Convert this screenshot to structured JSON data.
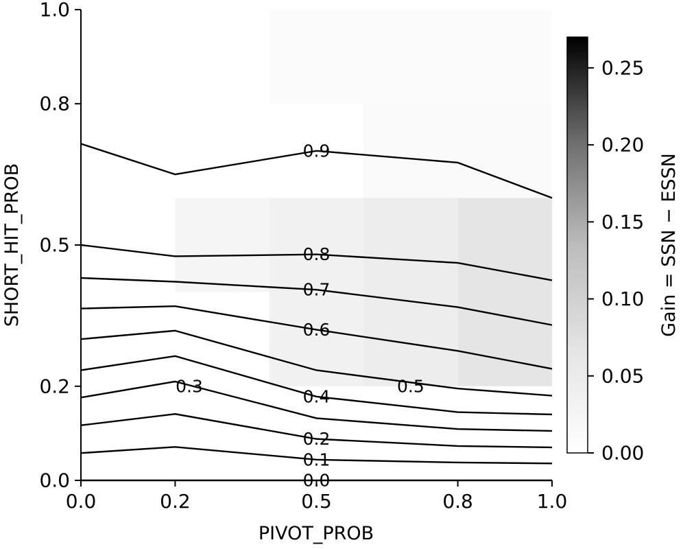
{
  "chart_data": {
    "type": "contour",
    "xlabel": "PIVOT_PROB",
    "ylabel": "SHORT_HIT_PROB",
    "colorbar_label": "Gain = SSN − ESSN",
    "xlim": [
      0.0,
      1.0
    ],
    "ylim": [
      0.0,
      1.0
    ],
    "x_ticks": [
      0.0,
      0.2,
      0.5,
      0.8,
      1.0
    ],
    "x_tick_labels": [
      "0.0",
      "0.2",
      "0.5",
      "0.8",
      "1.0"
    ],
    "y_ticks": [
      0.0,
      0.2,
      0.5,
      0.8,
      1.0
    ],
    "y_tick_labels": [
      "0.0",
      "0.2",
      "0.5",
      "0.8",
      "1.0"
    ],
    "grid": false,
    "colorbar": {
      "range": [
        0.0,
        0.27
      ],
      "ticks": [
        0.0,
        0.05,
        0.1,
        0.15,
        0.2,
        0.25
      ],
      "tick_labels": [
        "0.00",
        "0.05",
        "0.10",
        "0.15",
        "0.20",
        "0.25"
      ],
      "colormap": "Greys"
    },
    "gain_cells": [
      {
        "x0": 0.4,
        "x1": 0.6,
        "y0": 0.8,
        "y1": 1.0,
        "gain": 0.01
      },
      {
        "x0": 0.6,
        "x1": 1.0,
        "y0": 0.8,
        "y1": 1.0,
        "gain": 0.01
      },
      {
        "x0": 0.6,
        "x1": 1.0,
        "y0": 0.6,
        "y1": 0.8,
        "gain": 0.015
      },
      {
        "x0": 0.2,
        "x1": 0.4,
        "y0": 0.4,
        "y1": 0.6,
        "gain": 0.025
      },
      {
        "x0": 0.4,
        "x1": 0.6,
        "y0": 0.2,
        "y1": 0.6,
        "gain": 0.035
      },
      {
        "x0": 0.6,
        "x1": 0.8,
        "y0": 0.2,
        "y1": 0.6,
        "gain": 0.045
      },
      {
        "x0": 0.8,
        "x1": 1.0,
        "y0": 0.2,
        "y1": 0.6,
        "gain": 0.065
      }
    ],
    "contours": [
      {
        "level": "0.0",
        "points": [
          [
            0.0,
            0.0
          ],
          [
            0.2,
            0.0
          ],
          [
            0.5,
            0.0
          ],
          [
            0.8,
            0.0
          ],
          [
            1.0,
            0.0
          ]
        ],
        "label_at": [
          0.5,
          0.0
        ]
      },
      {
        "level": "0.1",
        "points": [
          [
            0.0,
            0.058
          ],
          [
            0.2,
            0.071
          ],
          [
            0.5,
            0.044
          ],
          [
            0.8,
            0.038
          ],
          [
            1.0,
            0.036
          ]
        ],
        "label_at": [
          0.5,
          0.044
        ]
      },
      {
        "level": "0.2",
        "points": [
          [
            0.0,
            0.117
          ],
          [
            0.2,
            0.141
          ],
          [
            0.5,
            0.088
          ],
          [
            0.8,
            0.073
          ],
          [
            1.0,
            0.07
          ]
        ],
        "label_at": [
          0.5,
          0.088
        ]
      },
      {
        "level": "0.3",
        "points": [
          [
            0.0,
            0.176
          ],
          [
            0.2,
            0.21
          ],
          [
            0.5,
            0.132
          ],
          [
            0.8,
            0.109
          ],
          [
            1.0,
            0.105
          ]
        ],
        "label_at": [
          0.23,
          0.2
        ]
      },
      {
        "level": "0.4",
        "points": [
          [
            0.0,
            0.234
          ],
          [
            0.2,
            0.264
          ],
          [
            0.5,
            0.178
          ],
          [
            0.8,
            0.145
          ],
          [
            1.0,
            0.14
          ]
        ],
        "label_at": [
          0.5,
          0.178
        ]
      },
      {
        "level": "0.5",
        "points": [
          [
            0.0,
            0.3
          ],
          [
            0.2,
            0.318
          ],
          [
            0.5,
            0.234
          ],
          [
            0.8,
            0.195
          ],
          [
            1.0,
            0.18
          ]
        ],
        "label_at": [
          0.7,
          0.2
        ]
      },
      {
        "level": "0.6",
        "points": [
          [
            0.0,
            0.365
          ],
          [
            0.2,
            0.37
          ],
          [
            0.5,
            0.32
          ],
          [
            0.8,
            0.275
          ],
          [
            1.0,
            0.237
          ]
        ],
        "label_at": [
          0.5,
          0.32
        ]
      },
      {
        "level": "0.7",
        "points": [
          [
            0.0,
            0.43
          ],
          [
            0.2,
            0.422
          ],
          [
            0.5,
            0.405
          ],
          [
            0.8,
            0.368
          ],
          [
            1.0,
            0.33
          ]
        ],
        "label_at": [
          0.5,
          0.405
        ]
      },
      {
        "level": "0.8",
        "points": [
          [
            0.0,
            0.5
          ],
          [
            0.2,
            0.476
          ],
          [
            0.5,
            0.48
          ],
          [
            0.8,
            0.462
          ],
          [
            1.0,
            0.425
          ]
        ],
        "label_at": [
          0.5,
          0.48
        ]
      },
      {
        "level": "0.9",
        "points": [
          [
            0.0,
            0.715
          ],
          [
            0.2,
            0.65
          ],
          [
            0.5,
            0.7
          ],
          [
            0.8,
            0.675
          ],
          [
            1.0,
            0.6
          ]
        ],
        "label_at": [
          0.5,
          0.7
        ]
      }
    ]
  }
}
